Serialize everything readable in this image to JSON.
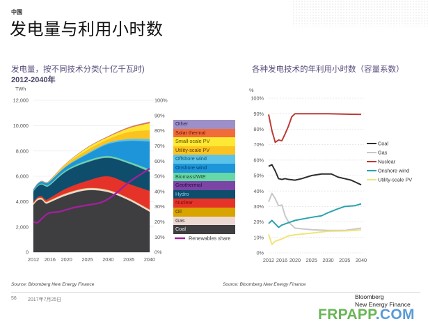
{
  "header": {
    "region": "中国",
    "title": "发电量与利用小时数"
  },
  "left_panel": {
    "title": "发电量，按不同技术分类(十亿千瓦时)",
    "subtitle": "2012-2040年",
    "renewables_legend_label": "Renewables share"
  },
  "right_panel": {
    "title": "各种发电技术的年利用小时数（容量系数）"
  },
  "footer": {
    "source_left": "Source: Bloomberg New Energy Finance",
    "source_right": "Source: Bloomberg New Energy Finance",
    "page_number": "56",
    "date": "2017年7月25日",
    "brand_line1": "Bloomberg",
    "brand_line2": "New Energy Finance",
    "watermark_part1": "FRPAPP",
    "watermark_part2": ".COM",
    "watermark_color1": "#6ab557",
    "watermark_color2": "#5b9bd5"
  },
  "chart_data": [
    {
      "type": "area",
      "stacked": true,
      "title": "发电量，按不同技术分类(十亿千瓦时)",
      "subtitle": "2012-2040年",
      "ylabel": "TWh",
      "xlim": [
        2012,
        2040
      ],
      "ylim": [
        0,
        12000
      ],
      "y2lim": [
        0,
        100
      ],
      "xticks": [
        2012,
        2016,
        2020,
        2025,
        2030,
        2035,
        2040
      ],
      "xtick_labels": [
        "2012",
        "2016",
        "2020",
        "2025",
        "2030",
        "2035",
        "2040"
      ],
      "yticks": [
        0,
        2000,
        4000,
        6000,
        8000,
        10000,
        12000
      ],
      "ytick_labels": [
        "0",
        "2,000",
        "4,000",
        "6,000",
        "8,000",
        "10,000",
        "12,000"
      ],
      "y2ticks": [
        0,
        10,
        20,
        30,
        40,
        50,
        60,
        70,
        80,
        90,
        100
      ],
      "y2tick_labels": [
        "0%",
        "10%",
        "20%",
        "30%",
        "40%",
        "50%",
        "60%",
        "70%",
        "80%",
        "90%",
        "100%"
      ],
      "grid": true,
      "legend": "right",
      "x": [
        2012,
        2013,
        2014,
        2015,
        2016,
        2020,
        2025,
        2030,
        2035,
        2040
      ],
      "series": [
        {
          "name": "Coal",
          "color": "#3e3d40",
          "label_color": "#f0f0f0",
          "values": [
            3750,
            4100,
            4150,
            3850,
            3950,
            4500,
            4900,
            4750,
            4100,
            3200
          ]
        },
        {
          "name": "Gas",
          "color": "#ecd8d3",
          "label_color": "#333333",
          "values": [
            100,
            120,
            120,
            120,
            130,
            150,
            150,
            150,
            150,
            150
          ]
        },
        {
          "name": "Oil",
          "color": "#d9a300",
          "label_color": "#4a3500",
          "values": [
            30,
            30,
            30,
            30,
            40,
            30,
            30,
            30,
            20,
            30
          ]
        },
        {
          "name": "Nuclear",
          "color": "#e63329",
          "label_color": "#7a0d08",
          "values": [
            100,
            100,
            120,
            150,
            180,
            370,
            570,
            1070,
            1130,
            1470
          ]
        },
        {
          "name": "Hydro",
          "color": "#0e4d6c",
          "label_color": "#8fd4f2",
          "values": [
            820,
            850,
            930,
            1050,
            1000,
            1350,
            1450,
            1450,
            1600,
            1500
          ]
        },
        {
          "name": "Geothermal",
          "color": "#7b45a6",
          "label_color": "#2a0f45",
          "values": [
            0,
            0,
            10,
            10,
            10,
            10,
            20,
            20,
            20,
            20
          ]
        },
        {
          "name": "Biomass/WtE",
          "color": "#66d8a6",
          "label_color": "#1d4a35",
          "values": [
            50,
            60,
            70,
            90,
            90,
            110,
            130,
            130,
            130,
            180
          ]
        },
        {
          "name": "Onshore wind",
          "color": "#1d95d8",
          "label_color": "#0b3d6b",
          "values": [
            100,
            140,
            160,
            180,
            220,
            280,
            500,
            950,
            1650,
            2200
          ]
        },
        {
          "name": "Offshore wind",
          "color": "#5cc3e8",
          "label_color": "#14506b",
          "values": [
            0,
            0,
            0,
            0,
            10,
            30,
            80,
            100,
            150,
            200
          ]
        },
        {
          "name": "Utility-scale PV",
          "color": "#fcc21f",
          "label_color": "#5a4000",
          "values": [
            5,
            10,
            20,
            30,
            50,
            150,
            250,
            280,
            550,
            700
          ]
        },
        {
          "name": "Small-scale PV",
          "color": "#fde833",
          "label_color": "#5a5000",
          "values": [
            0,
            5,
            10,
            10,
            20,
            60,
            180,
            180,
            300,
            550
          ]
        },
        {
          "name": "Solar thermal",
          "color": "#f26b3a",
          "label_color": "#5a1800",
          "values": [
            0,
            0,
            0,
            0,
            0,
            10,
            20,
            40,
            60,
            80
          ]
        },
        {
          "name": "Other",
          "color": "#9d90c9",
          "label_color": "#2c2450",
          "values": [
            0,
            0,
            0,
            0,
            0,
            0,
            10,
            10,
            20,
            30
          ]
        }
      ],
      "line_series": {
        "name": "Renewables share",
        "axis": "right",
        "color": "#a0219a",
        "x": [
          2012,
          2013,
          2014,
          2015,
          2016,
          2018,
          2020,
          2022,
          2025,
          2028,
          2030,
          2032,
          2035,
          2038,
          2040
        ],
        "values": [
          20,
          19.5,
          22,
          24.5,
          26,
          26.5,
          28,
          29.5,
          31,
          32.5,
          35,
          39,
          46,
          51.5,
          55
        ]
      }
    },
    {
      "type": "line",
      "title": "各种发电技术的年利用小时数（容量系数）",
      "ylabel": "%",
      "xlim": [
        2012,
        2040
      ],
      "ylim": [
        0,
        100
      ],
      "xticks": [
        2012,
        2016,
        2020,
        2025,
        2030,
        2035,
        2040
      ],
      "xtick_labels": [
        "2012",
        "2016",
        "2020",
        "2025",
        "2030",
        "2035",
        "2040"
      ],
      "yticks": [
        0,
        10,
        20,
        30,
        40,
        50,
        60,
        70,
        80,
        90,
        100
      ],
      "ytick_labels": [
        "0%",
        "10%",
        "20%",
        "30%",
        "40%",
        "50%",
        "60%",
        "70%",
        "80%",
        "90%",
        "100%"
      ],
      "grid": true,
      "legend": "right",
      "series": [
        {
          "name": "Coal",
          "color": "#2d2d2d",
          "x": [
            2012,
            2013,
            2014,
            2015,
            2016,
            2017,
            2018,
            2020,
            2022,
            2025,
            2028,
            2031,
            2033,
            2035,
            2037,
            2040
          ],
          "values": [
            56,
            57,
            53,
            48,
            47.5,
            48,
            47.5,
            47,
            48,
            50,
            51,
            51,
            49,
            48,
            47,
            44
          ]
        },
        {
          "name": "Gas",
          "color": "#c8c8c8",
          "x": [
            2012,
            2013,
            2014,
            2015,
            2016,
            2017,
            2018,
            2020,
            2025,
            2030,
            2035,
            2040
          ],
          "values": [
            33,
            38.5,
            35,
            30.5,
            31,
            24,
            20,
            16,
            15,
            14.5,
            14.5,
            16
          ]
        },
        {
          "name": "Nuclear",
          "color": "#bd3a35",
          "x": [
            2012,
            2013,
            2014,
            2015,
            2016,
            2017,
            2018,
            2019,
            2020,
            2030,
            2040
          ],
          "values": [
            89.5,
            79,
            71.5,
            73,
            72.5,
            77,
            82,
            88,
            90,
            90,
            89.5
          ]
        },
        {
          "name": "Onshore wind",
          "color": "#2aa3ad",
          "x": [
            2012,
            2013,
            2015,
            2016,
            2018,
            2020,
            2025,
            2028,
            2030,
            2033,
            2035,
            2038,
            2040
          ],
          "values": [
            19,
            21,
            16.5,
            18,
            19.5,
            21,
            23,
            24,
            26,
            28.5,
            30,
            30.5,
            31.7
          ]
        },
        {
          "name": "Utility-scale PV",
          "color": "#efe57a",
          "x": [
            2012,
            2013,
            2014,
            2016,
            2018,
            2020,
            2025,
            2030,
            2035,
            2040
          ],
          "values": [
            12,
            5.5,
            7.5,
            9,
            11,
            11.7,
            12.8,
            14,
            14.2,
            14.8
          ]
        }
      ]
    }
  ]
}
